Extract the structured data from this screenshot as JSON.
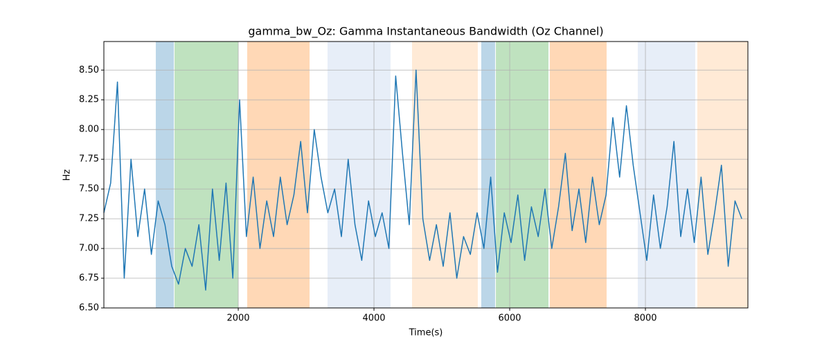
{
  "chart_data": {
    "type": "line",
    "title": "gamma_bw_Oz: Gamma Instantaneous Bandwidth (Oz Channel)",
    "x_label": "Time(s)",
    "y_label": "Hz",
    "xlim": [
      20,
      9510
    ],
    "ylim": [
      6.5,
      8.74
    ],
    "xticks": [
      2000,
      4000,
      6000,
      8000
    ],
    "yticks": [
      {
        "value": 6.5,
        "label": "6.50"
      },
      {
        "value": 6.75,
        "label": "6.75"
      },
      {
        "value": 7.0,
        "label": "7.00"
      },
      {
        "value": 7.25,
        "label": "7.25"
      },
      {
        "value": 7.5,
        "label": "7.50"
      },
      {
        "value": 7.75,
        "label": "7.75"
      },
      {
        "value": 8.0,
        "label": "8.00"
      },
      {
        "value": 8.25,
        "label": "8.25"
      },
      {
        "value": 8.5,
        "label": "8.50"
      }
    ],
    "grid": true,
    "color": "#1f77b4",
    "spans": [
      {
        "x0": 785,
        "x1": 1051,
        "color": "#1f77b4",
        "alpha": 0.3
      },
      {
        "x0": 1061,
        "x1": 2000,
        "color": "#2ca02c",
        "alpha": 0.3
      },
      {
        "x0": 2132,
        "x1": 3051,
        "color": "#ff7f0e",
        "alpha": 0.3
      },
      {
        "x0": 3316,
        "x1": 4244,
        "color": "#aec7e8",
        "alpha": 0.3
      },
      {
        "x0": 4561,
        "x1": 5530,
        "color": "#ffbb78",
        "alpha": 0.3
      },
      {
        "x0": 5581,
        "x1": 5785,
        "color": "#1f77b4",
        "alpha": 0.3
      },
      {
        "x0": 5796,
        "x1": 6571,
        "color": "#2ca02c",
        "alpha": 0.3
      },
      {
        "x0": 6591,
        "x1": 7428,
        "color": "#ff7f0e",
        "alpha": 0.3
      },
      {
        "x0": 7887,
        "x1": 8734,
        "color": "#aec7e8",
        "alpha": 0.3
      },
      {
        "x0": 8765,
        "x1": 9510,
        "color": "#ffbb78",
        "alpha": 0.3
      }
    ],
    "x": [
      20,
      120,
      220,
      320,
      420,
      520,
      620,
      720,
      820,
      920,
      1020,
      1120,
      1220,
      1320,
      1420,
      1520,
      1620,
      1720,
      1820,
      1920,
      2020,
      2120,
      2220,
      2320,
      2420,
      2520,
      2620,
      2720,
      2820,
      2920,
      3020,
      3120,
      3220,
      3320,
      3420,
      3520,
      3620,
      3720,
      3820,
      3920,
      4020,
      4120,
      4220,
      4320,
      4420,
      4520,
      4620,
      4720,
      4820,
      4920,
      5020,
      5120,
      5220,
      5320,
      5420,
      5520,
      5620,
      5720,
      5820,
      5920,
      6020,
      6120,
      6220,
      6320,
      6420,
      6520,
      6620,
      6720,
      6820,
      6920,
      7020,
      7120,
      7220,
      7320,
      7420,
      7520,
      7620,
      7720,
      7820,
      7920,
      8020,
      8120,
      8220,
      8320,
      8420,
      8520,
      8620,
      8720,
      8820,
      8920,
      9020,
      9120,
      9220,
      9320,
      9420
    ],
    "values": [
      7.3,
      7.55,
      8.4,
      6.75,
      7.75,
      7.1,
      7.5,
      6.95,
      7.4,
      7.2,
      6.85,
      6.7,
      7.0,
      6.85,
      7.2,
      6.65,
      7.5,
      6.9,
      7.55,
      6.75,
      8.25,
      7.1,
      7.6,
      7.0,
      7.4,
      7.1,
      7.6,
      7.2,
      7.45,
      7.9,
      7.3,
      8.0,
      7.6,
      7.3,
      7.5,
      7.1,
      7.75,
      7.2,
      6.9,
      7.4,
      7.1,
      7.3,
      7.0,
      8.45,
      7.8,
      7.2,
      8.5,
      7.25,
      6.9,
      7.2,
      6.85,
      7.3,
      6.75,
      7.1,
      6.95,
      7.3,
      7.0,
      7.6,
      6.8,
      7.3,
      7.05,
      7.45,
      6.9,
      7.35,
      7.1,
      7.5,
      7.0,
      7.35,
      7.8,
      7.15,
      7.5,
      7.05,
      7.6,
      7.2,
      7.45,
      8.1,
      7.6,
      8.2,
      7.7,
      7.3,
      6.9,
      7.45,
      7.0,
      7.35,
      7.9,
      7.1,
      7.5,
      7.05,
      7.6,
      6.95,
      7.3,
      7.7,
      6.85,
      7.4,
      7.25
    ]
  }
}
